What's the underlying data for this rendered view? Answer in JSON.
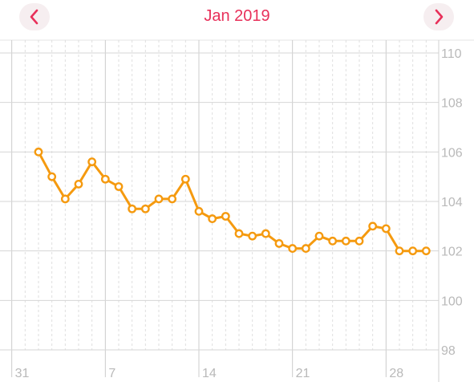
{
  "header": {
    "title": "Jan 2019",
    "prev_icon": "chevron-left-icon",
    "next_icon": "chevron-right-icon"
  },
  "colors": {
    "accent": "#e8305a",
    "line": "#f59a0f",
    "grid": "#d6d6d6",
    "tick": "#b9b9b9"
  },
  "chart_data": {
    "type": "line",
    "title": "",
    "xlabel": "",
    "ylabel": "",
    "x_tick_labels": [
      "31",
      "7",
      "14",
      "21",
      "28"
    ],
    "x_tick_days": [
      0,
      7,
      14,
      21,
      28
    ],
    "xlim": [
      -0.4,
      31.4
    ],
    "y_ticks": [
      98,
      100,
      102,
      104,
      106,
      108,
      110
    ],
    "ylim": [
      98,
      110
    ],
    "grid": true,
    "y_axis_position": "right",
    "series": [
      {
        "x": [
          2,
          3,
          4,
          5,
          6,
          7,
          8,
          9,
          10,
          11,
          12,
          13,
          14,
          15,
          16,
          17,
          18,
          19,
          20,
          21,
          22,
          23,
          24,
          25,
          26,
          27,
          28,
          29,
          30,
          31
        ],
        "values": [
          106.0,
          105.0,
          104.1,
          104.7,
          105.6,
          104.9,
          104.6,
          103.7,
          103.7,
          104.1,
          104.1,
          104.9,
          103.6,
          103.3,
          103.4,
          102.7,
          102.6,
          102.7,
          102.3,
          102.1,
          102.1,
          102.6,
          102.4,
          102.4,
          102.4,
          103.0,
          102.9,
          102.0,
          102.0,
          102.0
        ]
      }
    ]
  }
}
